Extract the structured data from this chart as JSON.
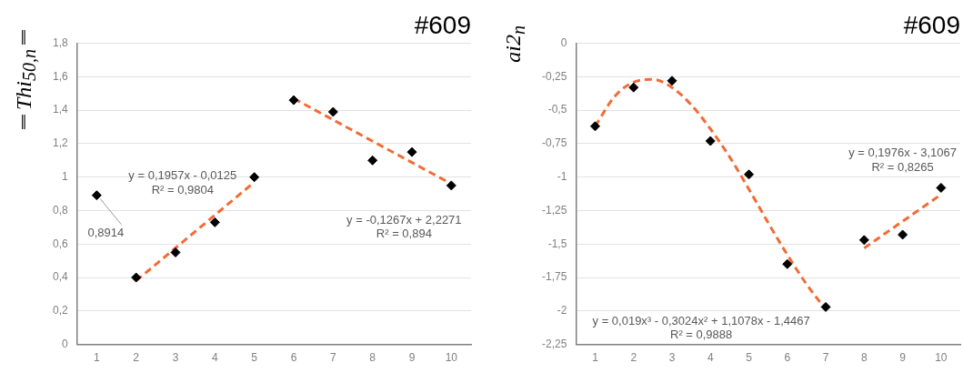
{
  "chart_data": [
    {
      "type": "scatter",
      "title": "#609",
      "ylabel": "‖Thi$_{50,n}$‖",
      "xlim": [
        0.5,
        10.5
      ],
      "xticks": [
        1,
        2,
        3,
        4,
        5,
        6,
        7,
        8,
        9,
        10
      ],
      "ylim": [
        0,
        1.8
      ],
      "yticks": [
        0,
        {
          "value": 0.2,
          "label": "0,2"
        },
        {
          "value": 0.4,
          "label": "0,4"
        },
        {
          "value": 0.6,
          "label": "0,6"
        },
        {
          "value": 0.8,
          "label": "0,8"
        },
        1,
        {
          "value": 1.2,
          "label": "1,2"
        },
        {
          "value": 1.4,
          "label": "1,4"
        },
        {
          "value": 1.6,
          "label": "1,6"
        },
        {
          "value": 1.8,
          "label": "1,8"
        }
      ],
      "grid": "y",
      "legend": false,
      "series": [
        {
          "marker": "diamond",
          "color": "#000000",
          "x": [
            1,
            2,
            3,
            4,
            5,
            6,
            7,
            8,
            9,
            10
          ],
          "values": [
            0.8914,
            0.4,
            0.55,
            0.73,
            1.0,
            1.46,
            1.39,
            1.1,
            1.15,
            0.95
          ],
          "value_labels": [
            "0,8914",
            null,
            null,
            null,
            null,
            null,
            null,
            null,
            null,
            null
          ]
        },
        {
          "type": "line",
          "marker": "none",
          "line_style": "dashed",
          "color": "#f26b35",
          "x": [
            2,
            5
          ],
          "values": [
            0.38,
            0.97
          ]
        },
        {
          "type": "line",
          "marker": "none",
          "line_style": "dashed",
          "color": "#f26b35",
          "x": [
            6,
            10
          ],
          "values": [
            1.47,
            0.96
          ]
        }
      ],
      "annotations": [
        "y = 0,1957x - 0,0125",
        "R² = 0,9804",
        "y = -0,1267x + 2,2271",
        "R² = 0,894"
      ]
    },
    {
      "type": "scatter",
      "title": "#609",
      "ylabel": "ai2$_{n}$",
      "xlim": [
        0.5,
        10.5
      ],
      "xticks": [
        1,
        2,
        3,
        4,
        5,
        6,
        7,
        8,
        9,
        10
      ],
      "ylim": [
        -2.25,
        0
      ],
      "yticks": [
        {
          "value": -2.25,
          "label": "-2,25"
        },
        -2,
        {
          "value": -1.75,
          "label": "-1,75"
        },
        {
          "value": -1.5,
          "label": "-1,5"
        },
        {
          "value": -1.25,
          "label": "-1,25"
        },
        -1,
        {
          "value": -0.75,
          "label": "-0,75"
        },
        {
          "value": -0.5,
          "label": "-0,5"
        },
        {
          "value": -0.25,
          "label": "-0,25"
        },
        0
      ],
      "grid": "y",
      "legend": false,
      "series": [
        {
          "marker": "diamond",
          "color": "#000000",
          "x": [
            1,
            2,
            3,
            4,
            5,
            6,
            7,
            8,
            9,
            10
          ],
          "values": [
            -0.62,
            -0.33,
            -0.28,
            -0.73,
            -0.98,
            -1.65,
            -1.97,
            -1.47,
            -1.43,
            -1.08
          ]
        },
        {
          "type": "line",
          "marker": "none",
          "line_style": "dashed",
          "color": "#f26b35",
          "x": [
            1,
            1.5,
            2,
            2.5,
            3,
            3.5,
            4,
            4.5,
            5,
            5.5,
            6,
            6.5,
            7
          ],
          "values": [
            -0.62,
            -0.4,
            -0.29,
            -0.27,
            -0.33,
            -0.46,
            -0.64,
            -0.85,
            -1.09,
            -1.34,
            -1.58,
            -1.8,
            -1.99
          ]
        },
        {
          "type": "line",
          "marker": "none",
          "line_style": "dashed",
          "color": "#f26b35",
          "x": [
            8,
            10
          ],
          "values": [
            -1.53,
            -1.13
          ]
        }
      ],
      "annotations": [
        "y = 0,019x³ - 0,3024x² + 1,1078x - 1,4467",
        "R² = 0,9888",
        "y = 0,1976x - 3,1067",
        "R² = 0,8265"
      ]
    }
  ]
}
